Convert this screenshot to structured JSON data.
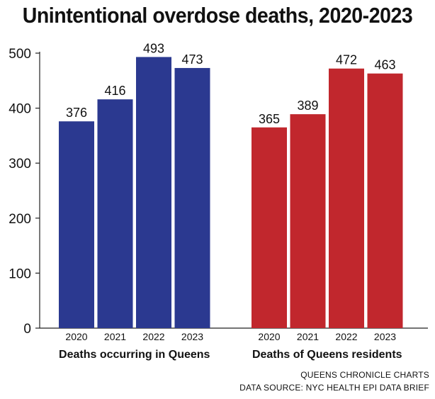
{
  "chart_data": {
    "type": "bar",
    "title": "Unintentional overdose deaths, 2020-2023",
    "ylim": [
      0,
      500
    ],
    "yticks": [
      0,
      100,
      200,
      300,
      400,
      500
    ],
    "grid": false,
    "groups": [
      {
        "name": "Deaths occurring in Queens",
        "color": "#2b3990",
        "categories": [
          "2020",
          "2021",
          "2022",
          "2023"
        ],
        "values": [
          376,
          416,
          493,
          473
        ]
      },
      {
        "name": "Deaths of Queens residents",
        "color": "#c1272d",
        "categories": [
          "2020",
          "2021",
          "2022",
          "2023"
        ],
        "values": [
          365,
          389,
          472,
          463
        ]
      }
    ]
  },
  "credits": {
    "line1": "QUEENS CHRONICLE CHARTS",
    "line2": "DATA SOURCE: NYC HEALTH EPI DATA BRIEF"
  }
}
